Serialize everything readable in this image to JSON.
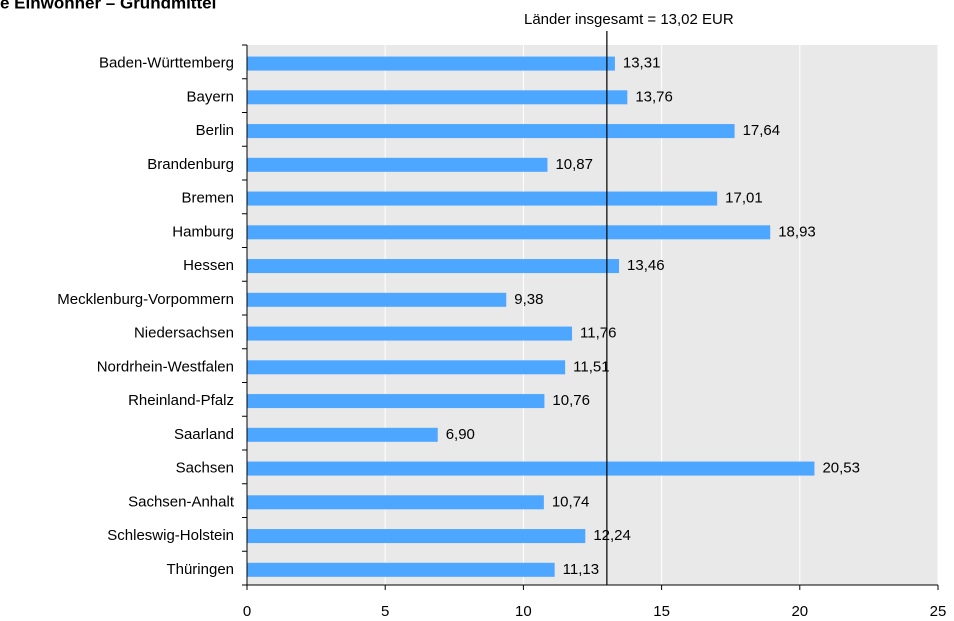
{
  "chart_data": {
    "type": "bar",
    "orientation": "horizontal",
    "title": "e Einwohner – Grundmittel",
    "annotation": "Länder insgesamt = 13,02 EUR",
    "reference_value": 13.02,
    "categories": [
      "Baden-Württemberg",
      "Bayern",
      "Berlin",
      "Brandenburg",
      "Bremen",
      "Hamburg",
      "Hessen",
      "Mecklenburg-Vorpommern",
      "Niedersachsen",
      "Nordrhein-Westfalen",
      "Rheinland-Pfalz",
      "Saarland",
      "Sachsen",
      "Sachsen-Anhalt",
      "Schleswig-Holstein",
      "Thüringen"
    ],
    "values": [
      13.31,
      13.76,
      17.64,
      10.87,
      17.01,
      18.93,
      13.46,
      9.38,
      11.76,
      11.51,
      10.76,
      6.9,
      20.53,
      10.74,
      12.24,
      11.13
    ],
    "value_labels": [
      "13,31",
      "13,76",
      "17,64",
      "10,87",
      "17,01",
      "18,93",
      "13,46",
      "9,38",
      "11,76",
      "11,51",
      "10,76",
      "6,90",
      "20,53",
      "10,74",
      "12,24",
      "11,13"
    ],
    "color": "#4da6ff",
    "xlim": [
      0,
      25
    ],
    "xticks": [
      0,
      5,
      10,
      15,
      20,
      25
    ],
    "grid": true
  }
}
